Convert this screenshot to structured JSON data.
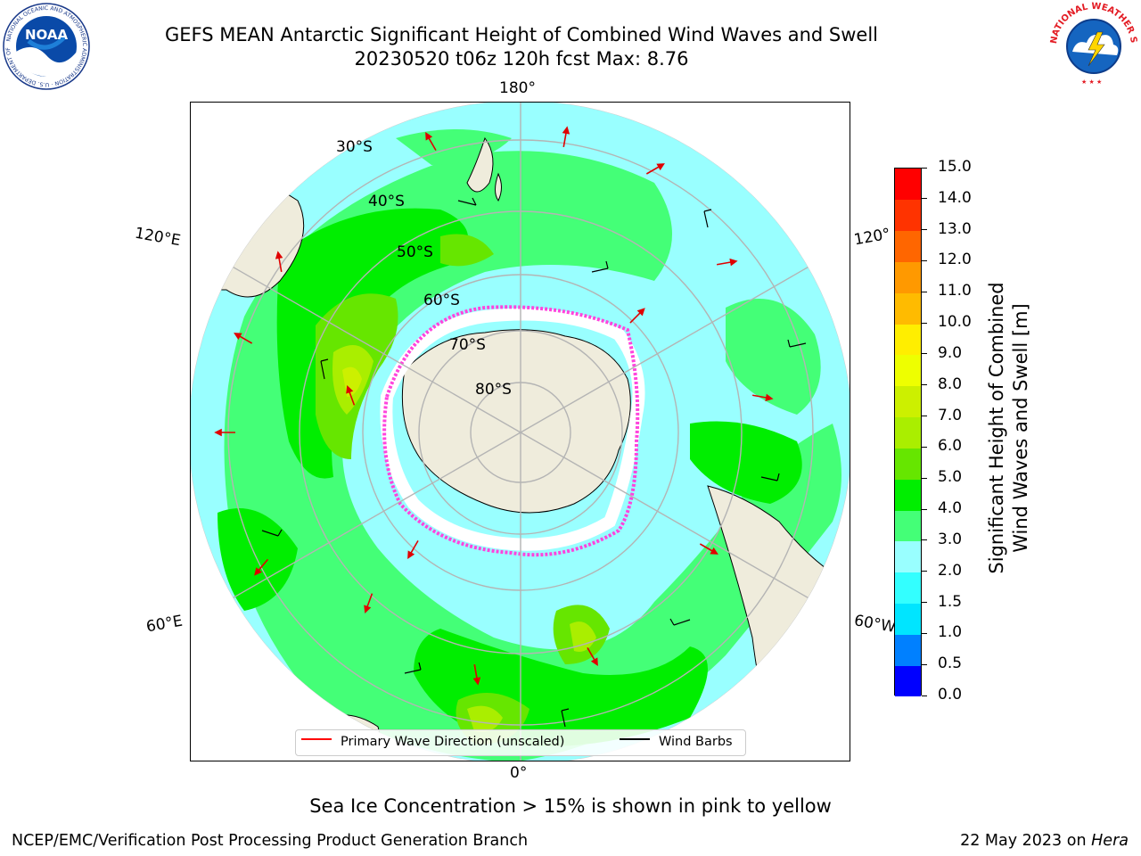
{
  "title": {
    "line1": "GEFS MEAN Antarctic Significant Height of Combined Wind Waves and Swell",
    "line2": "20230520 t06z 120h fcst   Max: 8.76"
  },
  "logos": {
    "left_icon": "noaa-logo-icon",
    "left_text": "NOAA",
    "left_ring": "NATIONAL OCEANIC AND ATMOSPHERIC ADMINISTRATION · U.S. DEPARTMENT OF COMMERCE",
    "right_icon": "nws-logo-icon",
    "right_ring": "NATIONAL WEATHER SERVICE"
  },
  "map": {
    "projection": "south-polar-stereographic",
    "lon_labels": {
      "top": "180°",
      "bottom": "0°",
      "upper_left": "120°E",
      "lower_left": "60°E",
      "upper_right": "120°",
      "lower_right": "60°W"
    },
    "lat_labels": [
      "30°S",
      "40°S",
      "50°S",
      "60°S",
      "70°S",
      "80°S"
    ],
    "land_color": "#efecdc",
    "ocean_outside_color": "#ffffff"
  },
  "colorbar": {
    "title_line1": "Significant Height of Combined",
    "title_line2": "Wind Waves and Swell [m]",
    "ticks": [
      "0.0",
      "0.5",
      "1.0",
      "1.5",
      "2.0",
      "3.0",
      "4.0",
      "5.0",
      "6.0",
      "7.0",
      "8.0",
      "9.0",
      "10.0",
      "11.0",
      "12.0",
      "13.0",
      "14.0",
      "15.0"
    ],
    "colors": [
      "#0000ff",
      "#0080ff",
      "#00e5ff",
      "#33ffff",
      "#99ffff",
      "#44ff77",
      "#00ee00",
      "#66e600",
      "#aaee00",
      "#ccf000",
      "#eeff00",
      "#ffee00",
      "#ffbb00",
      "#ff9900",
      "#ff6600",
      "#ff3300",
      "#ff0000"
    ]
  },
  "legend": {
    "primary_wave": "Primary Wave Direction (unscaled)",
    "primary_wave_color": "#ff0000",
    "wind_barbs": "Wind Barbs",
    "wind_barbs_color": "#000000"
  },
  "caption": "Sea Ice Concentration > 15% is shown in pink to yellow",
  "footer": {
    "left": "NCEP/EMC/Verification Post Processing Product Generation Branch",
    "right_date": "22 May 2023 on",
    "right_host": "Hera"
  }
}
